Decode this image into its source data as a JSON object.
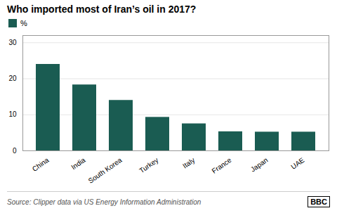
{
  "chart_data": {
    "type": "bar",
    "title": "Who imported most of Iran’s oil in 2017?",
    "categories": [
      "China",
      "India",
      "South Korea",
      "Turkey",
      "Italy",
      "France",
      "Japan",
      "UAE"
    ],
    "series": [
      {
        "name": "%",
        "color": "#1a5c52",
        "values": [
          24,
          18.3,
          14,
          9.3,
          7.5,
          5.3,
          5.2,
          5.2
        ]
      }
    ],
    "ylim": [
      0,
      32
    ],
    "yticks": [
      0,
      10,
      20,
      30
    ],
    "grid": true,
    "annotations": [
      "Source: Clipper data via US Energy Information Administration",
      "BBC"
    ]
  }
}
